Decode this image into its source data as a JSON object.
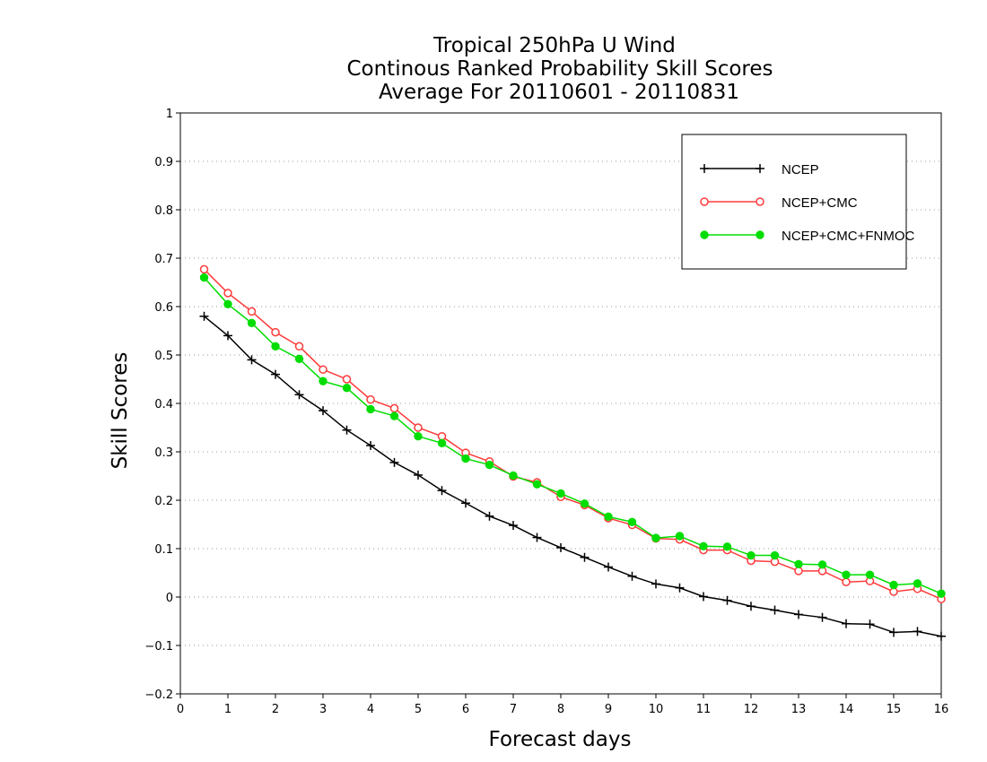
{
  "title_lines": [
    "Tropical 250hPa U Wind",
    "Continous Ranked Probability Skill Scores",
    "Average For 20110601 - 20110831"
  ],
  "chart_data": {
    "type": "line",
    "xlabel": "Forecast days",
    "ylabel": "Skill Scores",
    "xlim": [
      0,
      16
    ],
    "ylim": [
      -0.2,
      1
    ],
    "x_ticks": [
      "0",
      "1",
      "2",
      "3",
      "4",
      "5",
      "6",
      "7",
      "8",
      "9",
      "10",
      "11",
      "12",
      "13",
      "14",
      "15",
      "16"
    ],
    "y_ticks": [
      "−0.2",
      "−0.1",
      "0",
      "0.1",
      "0.2",
      "0.3",
      "0.4",
      "0.5",
      "0.6",
      "0.7",
      "0.8",
      "0.9",
      "1"
    ],
    "y_tick_values": [
      -0.2,
      -0.1,
      0,
      0.1,
      0.2,
      0.3,
      0.4,
      0.5,
      0.6,
      0.7,
      0.8,
      0.9,
      1
    ],
    "grid": "horizontal dotted",
    "legend_position": "top-right",
    "x": [
      0.5,
      1,
      1.5,
      2,
      2.5,
      3,
      3.5,
      4,
      4.5,
      5,
      5.5,
      6,
      6.5,
      7,
      7.5,
      8,
      8.5,
      9,
      9.5,
      10,
      10.5,
      11,
      11.5,
      12,
      12.5,
      13,
      13.5,
      14,
      14.5,
      15,
      15.5,
      16
    ],
    "series": [
      {
        "name": "NCEP",
        "color": "#000000",
        "marker": "plus",
        "values": [
          0.58,
          0.54,
          0.49,
          0.46,
          0.418,
          0.385,
          0.345,
          0.313,
          0.278,
          0.252,
          0.22,
          0.194,
          0.167,
          0.148,
          0.123,
          0.102,
          0.082,
          0.062,
          0.043,
          0.027,
          0.019,
          0.001,
          -0.007,
          -0.019,
          -0.027,
          -0.036,
          -0.042,
          -0.055,
          -0.056,
          -0.073,
          -0.071,
          -0.081
        ]
      },
      {
        "name": "NCEP+CMC",
        "color": "#ff3b3b",
        "marker": "open-circle",
        "values": [
          0.677,
          0.628,
          0.59,
          0.547,
          0.518,
          0.47,
          0.45,
          0.408,
          0.39,
          0.35,
          0.332,
          0.298,
          0.28,
          0.249,
          0.237,
          0.207,
          0.19,
          0.163,
          0.149,
          0.121,
          0.119,
          0.097,
          0.097,
          0.075,
          0.073,
          0.054,
          0.054,
          0.031,
          0.033,
          0.011,
          0.017,
          -0.004
        ]
      },
      {
        "name": "NCEP+CMC+FNMOC",
        "color": "#00dd00",
        "marker": "filled-circle",
        "values": [
          0.66,
          0.605,
          0.566,
          0.518,
          0.492,
          0.446,
          0.432,
          0.388,
          0.374,
          0.332,
          0.318,
          0.286,
          0.273,
          0.251,
          0.233,
          0.214,
          0.193,
          0.166,
          0.155,
          0.122,
          0.126,
          0.105,
          0.104,
          0.086,
          0.086,
          0.068,
          0.067,
          0.046,
          0.046,
          0.025,
          0.028,
          0.007
        ]
      }
    ]
  }
}
